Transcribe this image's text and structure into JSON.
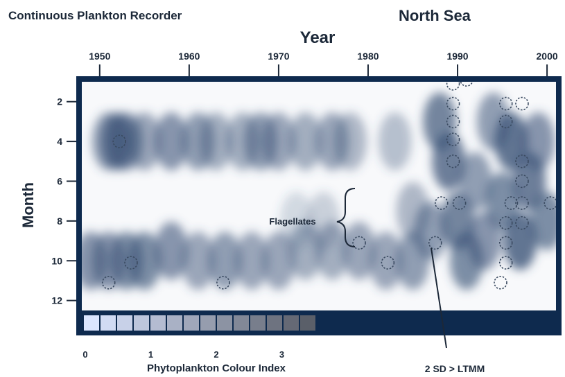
{
  "chart_data": {
    "type": "heatmap",
    "title_left": "Continuous Plankton Recorder",
    "title_right": "North Sea",
    "xlabel": "Year",
    "ylabel": "Month",
    "x_ticks": [
      1950,
      1960,
      1970,
      1980,
      1990,
      2000
    ],
    "x_tick_labels": [
      "1950",
      "1960",
      "1970",
      "1980",
      "1990",
      "2000"
    ],
    "xlim": [
      1948,
      2001
    ],
    "y_ticks": [
      2,
      4,
      6,
      8,
      10,
      12
    ],
    "y_tick_labels": [
      "2",
      "4",
      "6",
      "8",
      "10",
      "12"
    ],
    "ylim": [
      1,
      12.5
    ],
    "annotation_flagellates": "Flagellates",
    "annotation_sd": "2 SD > LTMM",
    "colorbar": {
      "label": "Phytoplankton Colour Index",
      "tick_values": [
        0,
        1,
        2,
        3
      ],
      "tick_labels": [
        "0",
        "1",
        "2",
        "3"
      ],
      "steps": 14
    },
    "blooms": [
      {
        "year": 1951,
        "month": 4,
        "level": 0.55
      },
      {
        "year": 1952,
        "month": 4,
        "level": 0.7
      },
      {
        "year": 1953,
        "month": 4,
        "level": 0.6
      },
      {
        "year": 1955,
        "month": 4,
        "level": 0.5
      },
      {
        "year": 1958,
        "month": 4,
        "level": 0.6
      },
      {
        "year": 1961,
        "month": 4,
        "level": 0.55
      },
      {
        "year": 1963,
        "month": 4,
        "level": 0.45
      },
      {
        "year": 1966,
        "month": 4,
        "level": 0.45
      },
      {
        "year": 1968,
        "month": 4,
        "level": 0.55
      },
      {
        "year": 1970,
        "month": 4,
        "level": 0.5
      },
      {
        "year": 1973,
        "month": 4,
        "level": 0.45
      },
      {
        "year": 1976,
        "month": 4,
        "level": 0.5
      },
      {
        "year": 1978,
        "month": 4,
        "level": 0.4
      },
      {
        "year": 1983,
        "month": 4,
        "level": 0.35
      },
      {
        "year": 1949,
        "month": 10,
        "level": 0.6
      },
      {
        "year": 1951,
        "month": 10,
        "level": 0.6
      },
      {
        "year": 1953,
        "month": 10,
        "level": 0.65
      },
      {
        "year": 1955,
        "month": 10,
        "level": 0.65
      },
      {
        "year": 1958,
        "month": 9.5,
        "level": 0.6
      },
      {
        "year": 1961,
        "month": 10,
        "level": 0.5
      },
      {
        "year": 1964,
        "month": 10,
        "level": 0.55
      },
      {
        "year": 1967,
        "month": 10,
        "level": 0.5
      },
      {
        "year": 1970,
        "month": 10,
        "level": 0.5
      },
      {
        "year": 1973,
        "month": 9.5,
        "level": 0.45
      },
      {
        "year": 1976,
        "month": 9.5,
        "level": 0.45
      },
      {
        "year": 1979,
        "month": 9.5,
        "level": 0.5
      },
      {
        "year": 1982,
        "month": 10,
        "level": 0.5
      },
      {
        "year": 1985,
        "month": 10,
        "level": 0.55
      },
      {
        "year": 1972,
        "month": 8,
        "level": 0.2
      },
      {
        "year": 1975,
        "month": 8,
        "level": 0.25
      },
      {
        "year": 1985,
        "month": 7.5,
        "level": 0.4
      },
      {
        "year": 1987,
        "month": 8.5,
        "level": 0.55
      },
      {
        "year": 1988,
        "month": 3,
        "level": 0.7
      },
      {
        "year": 1989,
        "month": 5,
        "level": 0.75
      },
      {
        "year": 1990,
        "month": 8,
        "level": 0.7
      },
      {
        "year": 1991,
        "month": 10,
        "level": 0.65
      },
      {
        "year": 1992,
        "month": 6,
        "level": 0.55
      },
      {
        "year": 1993,
        "month": 9,
        "level": 0.6
      },
      {
        "year": 1994,
        "month": 3,
        "level": 0.55
      },
      {
        "year": 1995,
        "month": 7,
        "level": 0.65
      },
      {
        "year": 1996,
        "month": 4,
        "level": 0.8
      },
      {
        "year": 1997,
        "month": 9,
        "level": 0.8
      },
      {
        "year": 1998,
        "month": 6,
        "level": 0.75
      },
      {
        "year": 1999,
        "month": 4,
        "level": 0.6
      },
      {
        "year": 2000,
        "month": 8,
        "level": 0.65
      }
    ],
    "sd_markers": [
      {
        "year": 1951.0,
        "month": 11.1
      },
      {
        "year": 1952.2,
        "month": 4.0
      },
      {
        "year": 1953.5,
        "month": 10.1
      },
      {
        "year": 1963.8,
        "month": 11.1
      },
      {
        "year": 1979.0,
        "month": 9.1
      },
      {
        "year": 1982.2,
        "month": 10.1
      },
      {
        "year": 1987.5,
        "month": 9.1
      },
      {
        "year": 1988.2,
        "month": 7.1
      },
      {
        "year": 1989.5,
        "month": 1.1
      },
      {
        "year": 1989.5,
        "month": 2.1
      },
      {
        "year": 1989.5,
        "month": 3.0
      },
      {
        "year": 1989.5,
        "month": 3.9
      },
      {
        "year": 1989.5,
        "month": 5.0
      },
      {
        "year": 1990.2,
        "month": 7.1
      },
      {
        "year": 1991.0,
        "month": 0.9
      },
      {
        "year": 1994.8,
        "month": 11.1
      },
      {
        "year": 1995.4,
        "month": 2.1
      },
      {
        "year": 1995.4,
        "month": 3.0
      },
      {
        "year": 1995.4,
        "month": 8.1
      },
      {
        "year": 1995.4,
        "month": 9.1
      },
      {
        "year": 1995.4,
        "month": 10.1
      },
      {
        "year": 1996.0,
        "month": 7.1
      },
      {
        "year": 1997.2,
        "month": 2.1
      },
      {
        "year": 1997.2,
        "month": 5.0
      },
      {
        "year": 1997.2,
        "month": 6.0
      },
      {
        "year": 1997.2,
        "month": 7.1
      },
      {
        "year": 1997.2,
        "month": 8.1
      },
      {
        "year": 2000.4,
        "month": 7.1
      }
    ],
    "colors": {
      "frame": "#0e2a4e",
      "heat": "#3c5478",
      "text": "#1c2838",
      "marker": "#3a4a60"
    }
  }
}
